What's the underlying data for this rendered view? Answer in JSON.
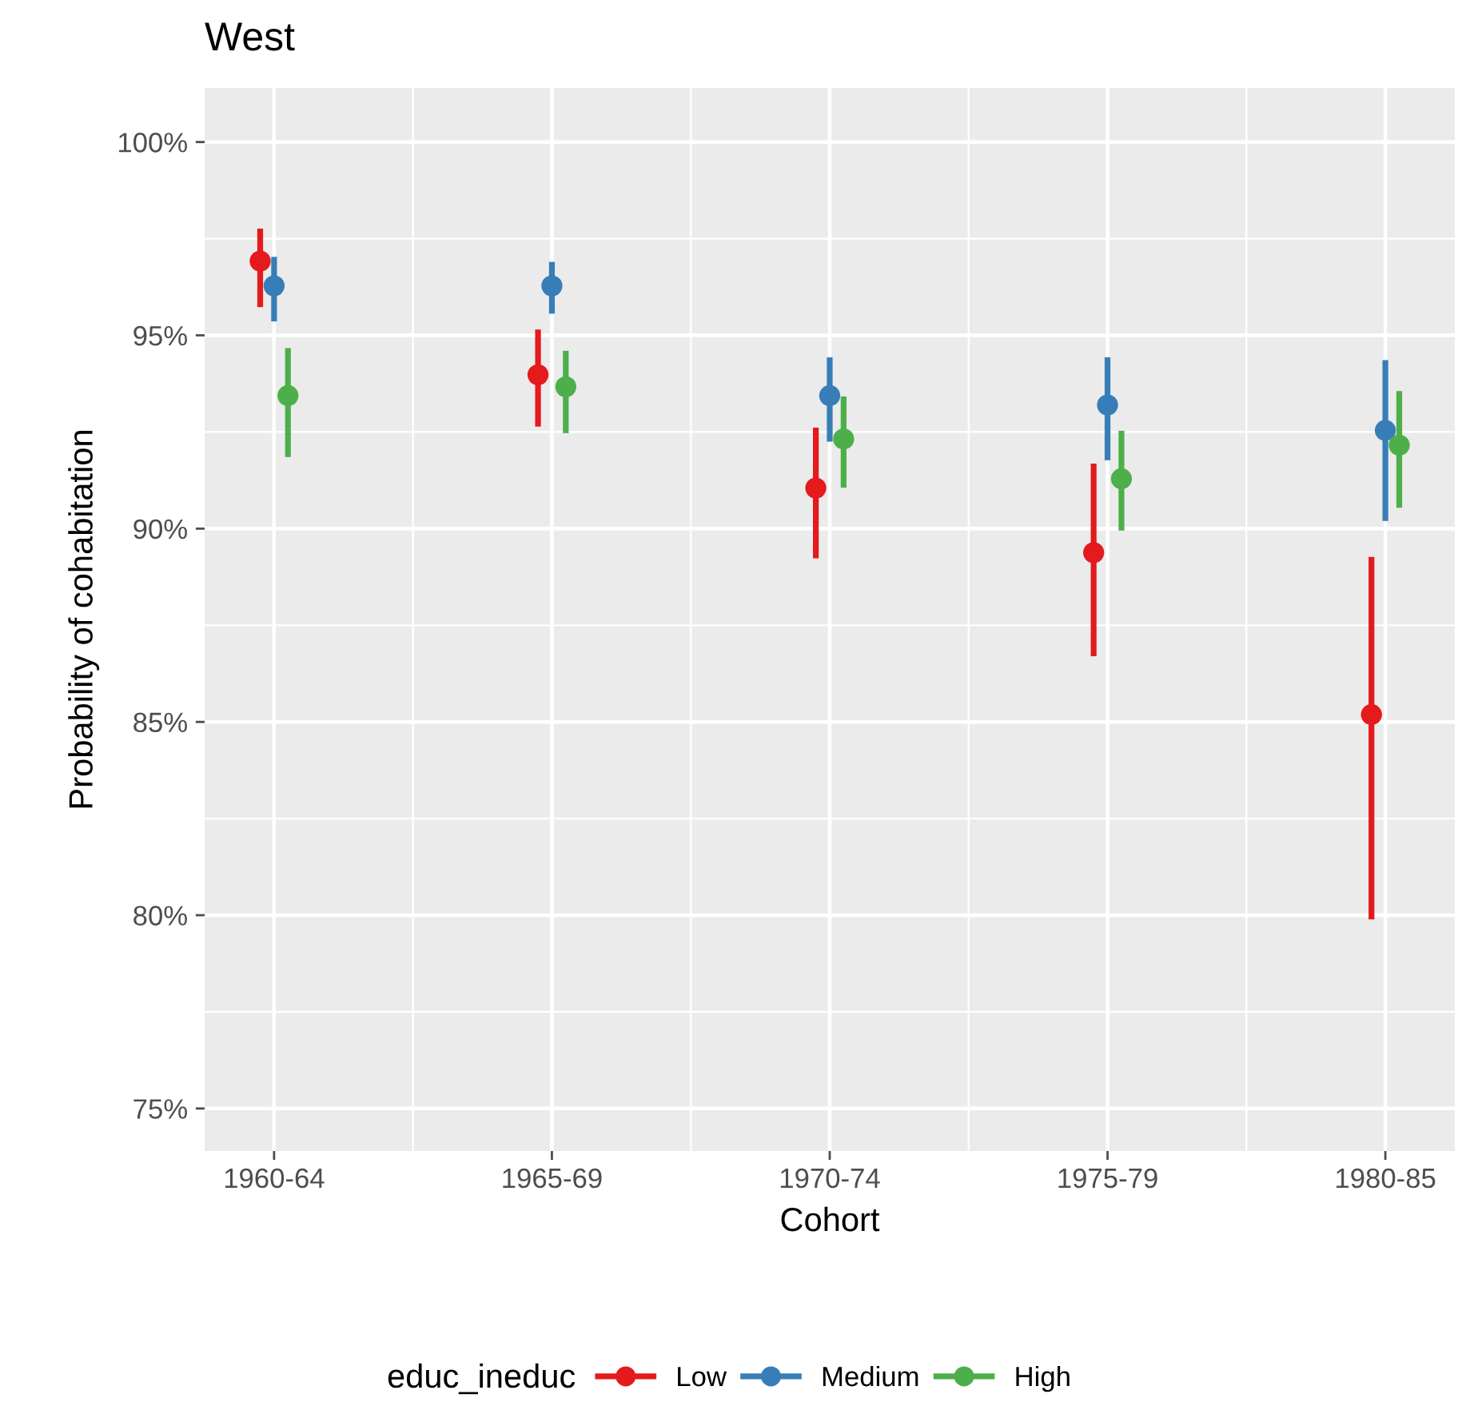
{
  "chart_data": {
    "type": "scatter",
    "title": "West",
    "xlabel": "Cohort",
    "ylabel": "Probability of cohabitation",
    "legend_title": "educ_ineduc",
    "categories": [
      "1960-64",
      "1965-69",
      "1970-74",
      "1975-79",
      "1980-85"
    ],
    "series": [
      {
        "name": "Low",
        "color": "#e41a1c",
        "values": [
          96.92,
          93.98,
          91.05,
          89.38,
          85.19
        ],
        "errors": [
          [
            95.73,
            97.76
          ],
          [
            92.64,
            95.15
          ],
          [
            89.23,
            92.61
          ],
          [
            86.7,
            91.68
          ],
          [
            79.89,
            89.27
          ]
        ]
      },
      {
        "name": "Medium",
        "color": "#377eb8",
        "values": [
          96.28,
          96.28,
          93.44,
          93.2,
          92.54
        ],
        "errors": [
          [
            95.36,
            97.03
          ],
          [
            95.56,
            96.9
          ],
          [
            92.25,
            94.43
          ],
          [
            91.77,
            94.43
          ],
          [
            90.2,
            94.36
          ]
        ]
      },
      {
        "name": "High",
        "color": "#4daf4a",
        "values": [
          93.44,
          93.67,
          92.32,
          91.29,
          92.16
        ],
        "errors": [
          [
            91.85,
            94.67
          ],
          [
            92.47,
            94.6
          ],
          [
            91.06,
            93.42
          ],
          [
            89.95,
            92.53
          ],
          [
            90.54,
            93.56
          ]
        ]
      }
    ],
    "ylim": [
      73.9,
      101.4
    ],
    "yticks": [
      {
        "value": 75,
        "label": "75%"
      },
      {
        "value": 80,
        "label": "80%"
      },
      {
        "value": 85,
        "label": "85%"
      },
      {
        "value": 90,
        "label": "90%"
      },
      {
        "value": 95,
        "label": "95%"
      },
      {
        "value": 100,
        "label": "100%"
      }
    ],
    "grid": true,
    "legend": "bottom",
    "marker": "circle"
  }
}
